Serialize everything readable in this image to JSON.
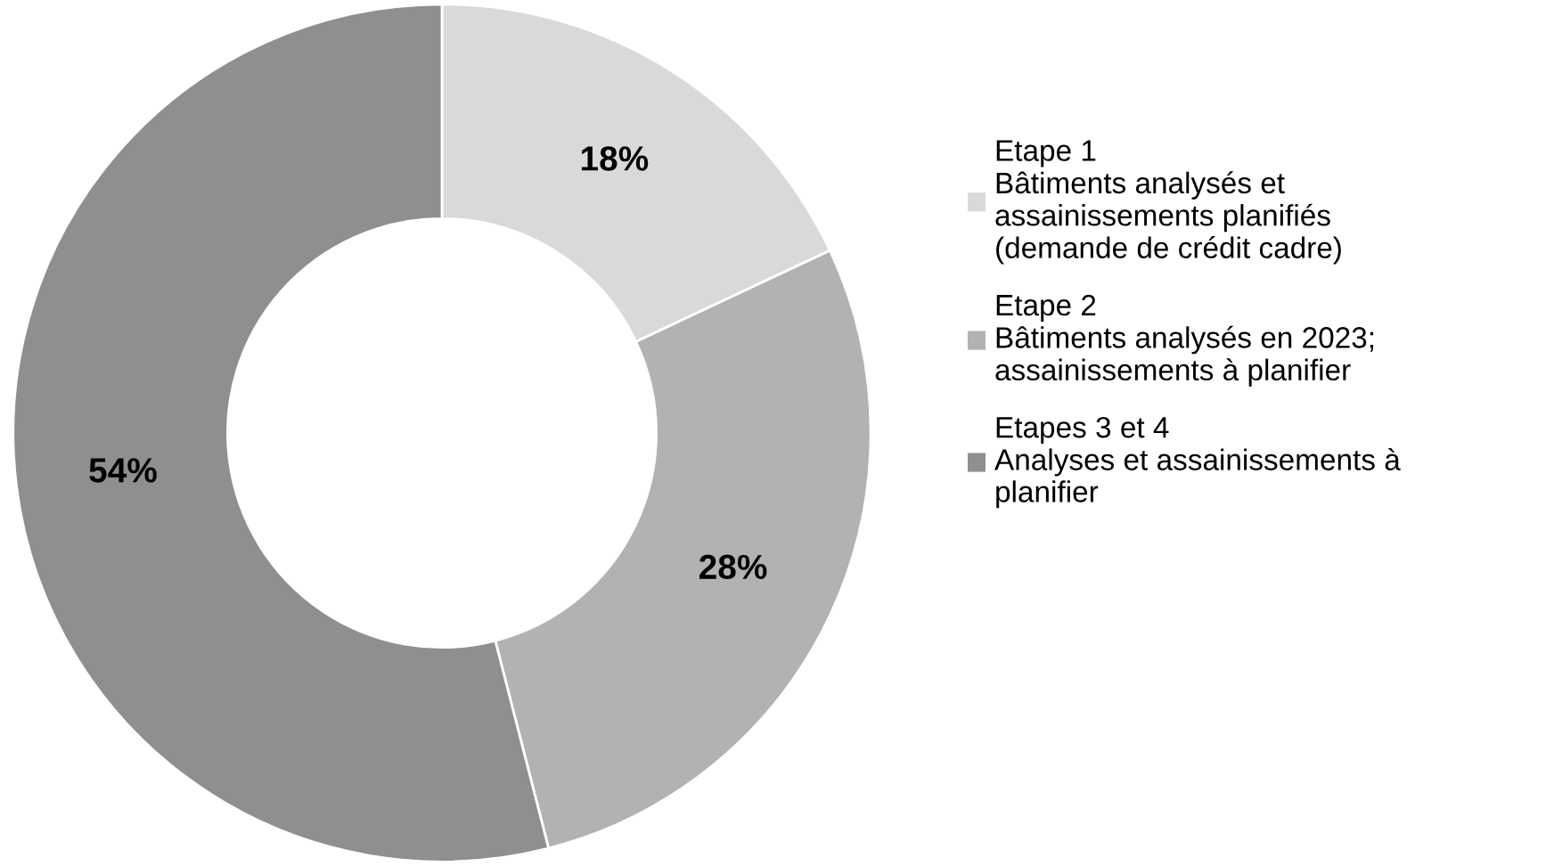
{
  "chart_data": {
    "type": "donut",
    "categories": [
      "Etape 1\nBâtiments analysés et\nassainissements planifiés\n(demande de crédit cadre)",
      "Etape 2\nBâtiments analysés en 2023;\nassainissements à planifier",
      "Etapes 3 et 4\nAnalyses et assainissements à\nplanifier"
    ],
    "values": [
      18,
      28,
      54
    ],
    "colors": [
      "#d9d9d9",
      "#b2b2b2",
      "#8f8f8f"
    ],
    "value_labels": [
      "18%",
      "28%",
      "54%"
    ],
    "legend": "right"
  }
}
